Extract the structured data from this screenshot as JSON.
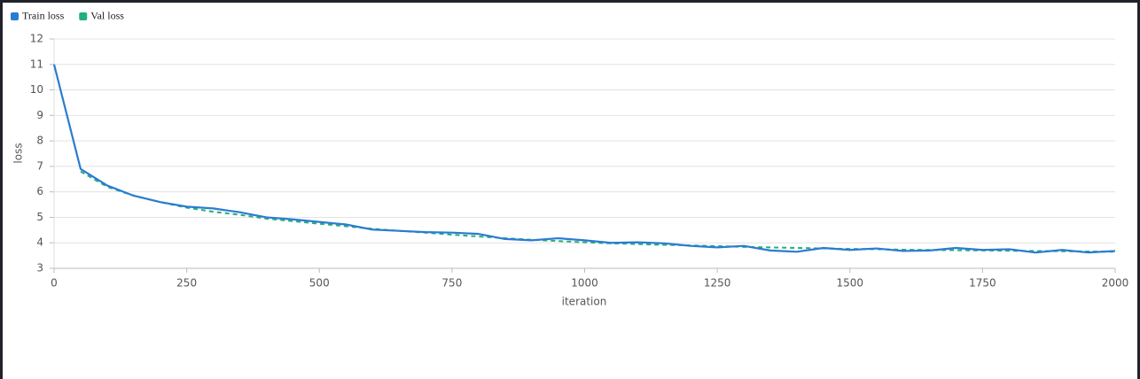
{
  "chart_data": {
    "type": "line",
    "x_label": "iteration",
    "y_label": "loss",
    "x": [
      0,
      50,
      100,
      150,
      200,
      250,
      300,
      350,
      400,
      450,
      500,
      550,
      600,
      650,
      700,
      750,
      800,
      850,
      900,
      950,
      1000,
      1050,
      1100,
      1150,
      1200,
      1250,
      1300,
      1350,
      1400,
      1450,
      1500,
      1550,
      1600,
      1650,
      1700,
      1750,
      1800,
      1850,
      1900,
      1950,
      2000
    ],
    "series": [
      {
        "name": "Train loss",
        "color": "#2b7bd3",
        "dashed": false,
        "values": [
          11.0,
          6.9,
          6.25,
          5.85,
          5.6,
          5.42,
          5.35,
          5.2,
          5.0,
          4.92,
          4.82,
          4.72,
          4.52,
          4.47,
          4.42,
          4.4,
          4.35,
          4.15,
          4.1,
          4.18,
          4.1,
          4.0,
          4.02,
          3.98,
          3.88,
          3.82,
          3.88,
          3.7,
          3.65,
          3.8,
          3.72,
          3.78,
          3.68,
          3.7,
          3.8,
          3.72,
          3.75,
          3.62,
          3.72,
          3.62,
          3.68
        ]
      },
      {
        "name": "Val loss",
        "color": "#21b07a",
        "dashed": true,
        "values": [
          null,
          6.8,
          6.2,
          5.85,
          5.6,
          5.38,
          5.22,
          5.1,
          4.95,
          4.85,
          4.75,
          4.65,
          4.55,
          4.47,
          4.4,
          4.32,
          4.25,
          4.18,
          4.12,
          4.07,
          4.02,
          3.98,
          3.95,
          3.92,
          3.9,
          3.87,
          3.84,
          3.82,
          3.8,
          3.78,
          3.76,
          3.75,
          3.73,
          3.72,
          3.71,
          3.7,
          3.69,
          3.68,
          3.67,
          3.66,
          3.65
        ]
      }
    ],
    "xlim": [
      0,
      2000
    ],
    "xticks": [
      0,
      250,
      500,
      750,
      1000,
      1250,
      1500,
      1750,
      2000
    ],
    "ylim": [
      3,
      12
    ],
    "yticks": [
      3,
      4,
      5,
      6,
      7,
      8,
      9,
      10,
      11,
      12
    ],
    "grid": true,
    "legend": "top-left"
  }
}
